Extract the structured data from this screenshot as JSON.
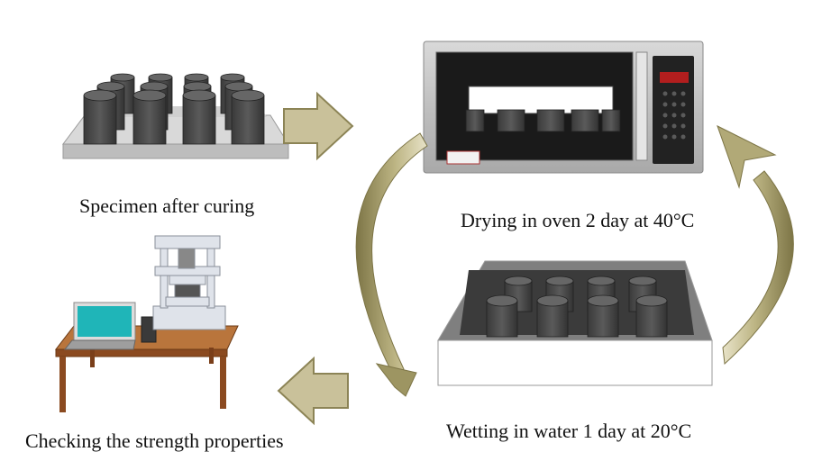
{
  "steps": {
    "curing": {
      "label": "Specimen after curing"
    },
    "drying": {
      "label": "Drying in oven 2 day at 40°C"
    },
    "wetting": {
      "label": "Wetting in water 1 day at 20°C"
    },
    "testing": {
      "label": "Checking the strength properties"
    }
  },
  "colors": {
    "arrow_fill": "#c9c19a",
    "arrow_stroke": "#8c8456",
    "arrow_gradient_dark": "#7d7546",
    "specimen": "#4a4a4a",
    "screen": "#1fb5b8",
    "table_wood": "#8b4a20"
  }
}
